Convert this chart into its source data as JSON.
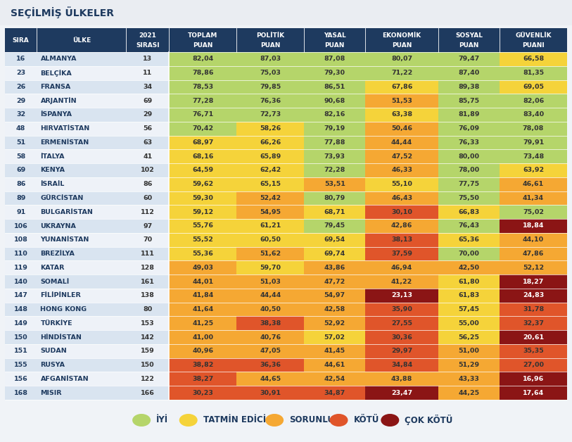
{
  "title": "SEÇİLMİŞ ÜLKELER",
  "header_line1": [
    "",
    "",
    "2021",
    "TOPLAM",
    "POLİTİK",
    "YASAL",
    "EKONOMİK",
    "SOSYAL",
    "GÜVENLİK"
  ],
  "header_line2": [
    "SIRA",
    "ÜLKE",
    "SIRASI",
    "PUAN",
    "PUAN",
    "PUAN",
    "PUAN",
    "PUAN",
    "PUANI"
  ],
  "rows": [
    [
      16,
      "ALMANYA",
      13,
      82.04,
      87.03,
      87.08,
      80.07,
      79.47,
      66.58
    ],
    [
      23,
      "BELÇİKA",
      11,
      78.86,
      75.03,
      79.3,
      71.22,
      87.4,
      81.35
    ],
    [
      26,
      "FRANSA",
      34,
      78.53,
      79.85,
      86.51,
      67.86,
      89.38,
      69.05
    ],
    [
      29,
      "ARJANTİN",
      69,
      77.28,
      76.36,
      90.68,
      51.53,
      85.75,
      82.06
    ],
    [
      32,
      "İSPANYA",
      29,
      76.71,
      72.73,
      82.16,
      63.38,
      81.89,
      83.4
    ],
    [
      48,
      "HIRVATİSTAN",
      56,
      70.42,
      58.26,
      79.19,
      50.46,
      76.09,
      78.08
    ],
    [
      51,
      "ERMENİSTAN",
      63,
      68.97,
      66.26,
      77.88,
      44.44,
      76.33,
      79.91
    ],
    [
      58,
      "İTALYA",
      41,
      68.16,
      65.89,
      73.93,
      47.52,
      80.0,
      73.48
    ],
    [
      69,
      "KENYA",
      102,
      64.59,
      62.42,
      72.28,
      46.33,
      78.0,
      63.92
    ],
    [
      86,
      "İSRAİL",
      86,
      59.62,
      65.15,
      53.51,
      55.1,
      77.75,
      46.61
    ],
    [
      89,
      "GÜRCİSTAN",
      60,
      59.3,
      52.42,
      80.79,
      46.43,
      75.5,
      41.34
    ],
    [
      91,
      "BULGARİSTAN",
      112,
      59.12,
      54.95,
      68.71,
      30.1,
      66.83,
      75.02
    ],
    [
      106,
      "UKRAYNA",
      97,
      55.76,
      61.21,
      79.45,
      42.86,
      76.43,
      18.84
    ],
    [
      108,
      "YUNANİSTAN",
      70,
      55.52,
      60.5,
      69.54,
      38.13,
      65.36,
      44.1
    ],
    [
      110,
      "BREZİLYA",
      111,
      55.36,
      51.62,
      69.74,
      37.59,
      70.0,
      47.86
    ],
    [
      119,
      "KATAR",
      128,
      49.03,
      59.7,
      43.86,
      46.94,
      42.5,
      52.12
    ],
    [
      140,
      "SOMALİ",
      161,
      44.01,
      51.03,
      47.72,
      41.22,
      61.8,
      18.27
    ],
    [
      147,
      "FİLİPİNLER",
      138,
      41.84,
      44.44,
      54.97,
      23.13,
      61.83,
      24.83
    ],
    [
      148,
      "HONG KONG",
      80,
      41.64,
      40.5,
      42.58,
      35.9,
      57.45,
      31.78
    ],
    [
      149,
      "TÜRKİYE",
      153,
      41.25,
      38.38,
      52.92,
      27.55,
      55.0,
      32.37
    ],
    [
      150,
      "HİNDİSTAN",
      142,
      41.0,
      40.76,
      57.02,
      30.36,
      56.25,
      20.61
    ],
    [
      151,
      "SUDAN",
      159,
      40.96,
      47.05,
      41.45,
      29.97,
      51.0,
      35.35
    ],
    [
      155,
      "RUSYA",
      150,
      38.82,
      36.36,
      44.61,
      34.84,
      51.29,
      27.0
    ],
    [
      156,
      "AFGANİSTAN",
      122,
      38.27,
      44.65,
      42.54,
      43.88,
      43.33,
      16.96
    ],
    [
      168,
      "MISIR",
      166,
      30.23,
      30.91,
      34.87,
      23.47,
      44.25,
      17.64
    ]
  ],
  "header_bg": "#1e3a5f",
  "header_fg": "#ffffff",
  "row_alt1": "#d9e4f0",
  "row_alt2": "#eef2f8",
  "title_bg": "#eaedf2",
  "bg_color": "#f0f3f7",
  "legend_items": [
    {
      "label": "İYİ",
      "color": "#b5d56a"
    },
    {
      "label": "TATMİN EDİCİ",
      "color": "#f5d33a"
    },
    {
      "label": "SORUNLU",
      "color": "#f5a833"
    },
    {
      "label": "KÖTÜ",
      "color": "#e0552a"
    },
    {
      "label": "ÇOK KÖTÜ",
      "color": "#8b1515"
    }
  ],
  "score_thresholds": [
    {
      "min": 70,
      "color": "#b5d56a"
    },
    {
      "min": 55,
      "color": "#f5d33a"
    },
    {
      "min": 40,
      "color": "#f5a833"
    },
    {
      "min": 25,
      "color": "#e0552a"
    },
    {
      "min": 0,
      "color": "#8b1515"
    }
  ]
}
